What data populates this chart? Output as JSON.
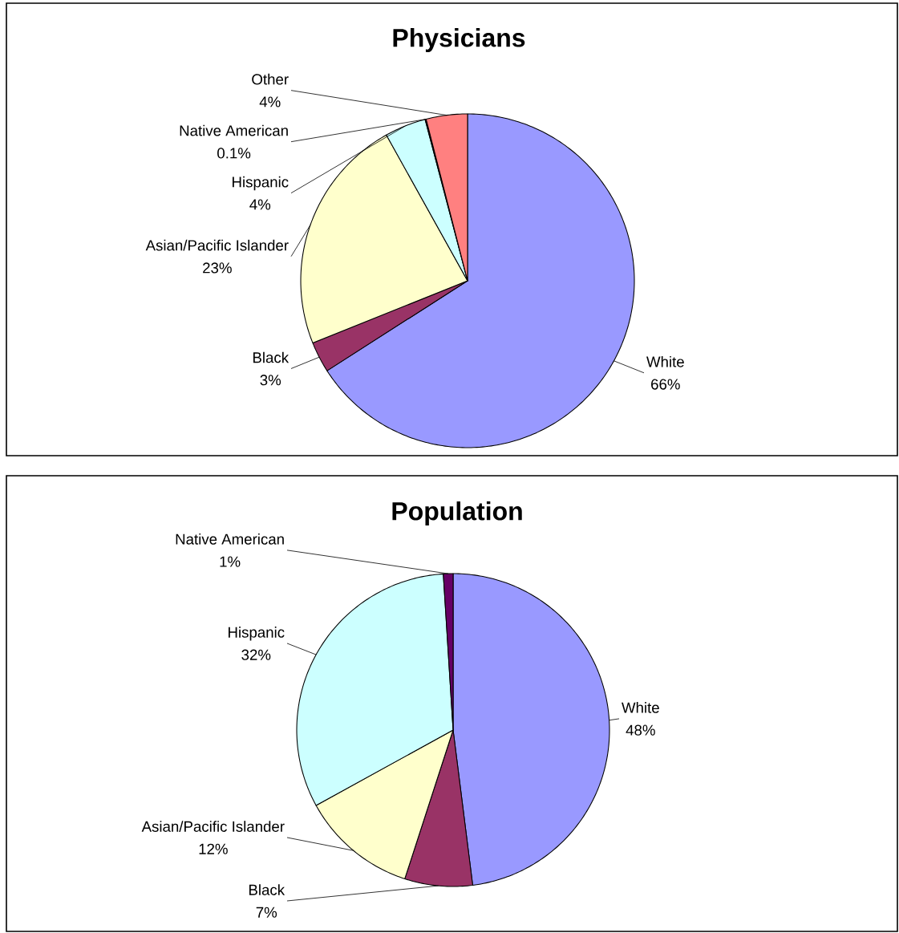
{
  "chart_data": [
    {
      "type": "pie",
      "title": "Physicians",
      "categories": [
        "White",
        "Black",
        "Asian/Pacific Islander",
        "Hispanic",
        "Native American",
        "Other"
      ],
      "values": [
        66,
        3,
        23,
        4,
        0.1,
        4
      ],
      "colors": [
        "#9999ff",
        "#993366",
        "#ffffcc",
        "#ccffff",
        "#660066",
        "#ff8080"
      ],
      "value_labels": [
        "66%",
        "3%",
        "23%",
        "4%",
        "0.1%",
        "4%"
      ]
    },
    {
      "type": "pie",
      "title": "Population",
      "categories": [
        "White",
        "Black",
        "Asian/Pacific Islander",
        "Hispanic",
        "Native American"
      ],
      "values": [
        48,
        7,
        12,
        32,
        1
      ],
      "colors": [
        "#9999ff",
        "#993366",
        "#ffffcc",
        "#ccffff",
        "#660066"
      ],
      "value_labels": [
        "48%",
        "7%",
        "12%",
        "32%",
        "1%"
      ]
    }
  ]
}
